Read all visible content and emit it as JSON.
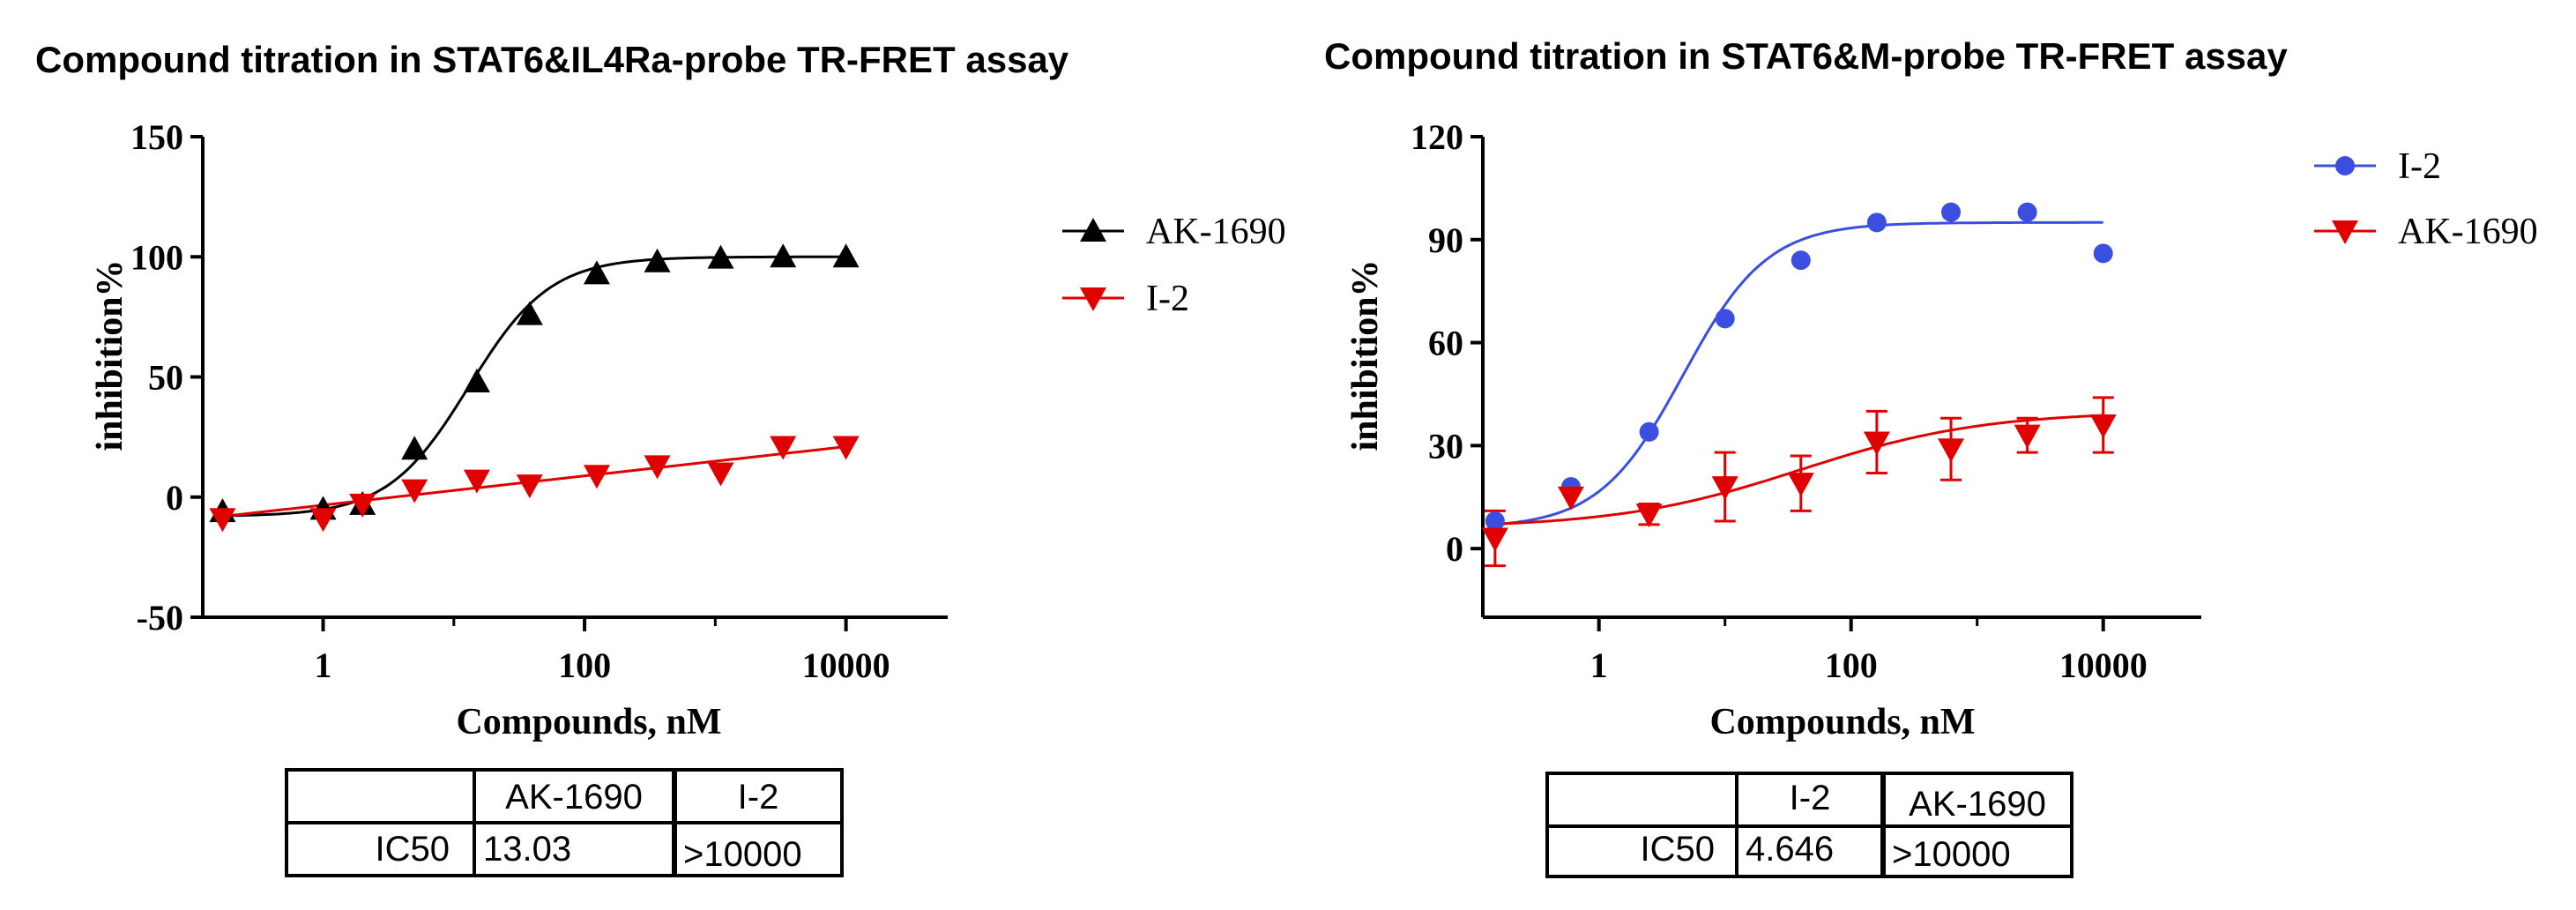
{
  "chart_data": [
    {
      "type": "scatter",
      "title": "Compound titration in STAT6&IL4Ra-probe TR-FRET assay",
      "xlabel": "Compounds, nM",
      "ylabel": "inhibition%",
      "xscale": "log10",
      "xlim": [
        0.12,
        60000
      ],
      "ylim": [
        -50,
        150
      ],
      "yticks": [
        "-50",
        "0",
        "50",
        "100",
        "150"
      ],
      "xticks": [
        "1",
        "100",
        "10000"
      ],
      "legend": "right",
      "series": [
        {
          "name": "AK-1690",
          "color": "#000000",
          "marker": "triangle-up",
          "x": [
            0.17,
            1,
            2,
            5,
            15,
            38,
            124,
            360,
            1100,
            3300,
            10000
          ],
          "y": [
            -6,
            -5,
            -3,
            20,
            48,
            76,
            93,
            98,
            99.5,
            100,
            100
          ],
          "fit": {
            "bottom": -8,
            "top": 100,
            "ic50": 13.03,
            "hill": 1.4
          }
        },
        {
          "name": "I-2",
          "color": "#e00000",
          "marker": "triangle-down",
          "x": [
            0.17,
            1,
            2,
            5,
            15,
            38,
            124,
            360,
            1100,
            3300,
            10000
          ],
          "y": [
            -9,
            -9,
            -3,
            3,
            7,
            5,
            9,
            13,
            10,
            21,
            21
          ],
          "fit": {
            "type": "linear-log",
            "y_at_0.17": -8,
            "y_at_10000": 21
          }
        }
      ],
      "table": {
        "columns": [
          "",
          "AK-1690",
          "I-2"
        ],
        "rows": [
          [
            "IC50",
            "13.03",
            ">10000"
          ]
        ]
      }
    },
    {
      "type": "scatter",
      "title": "Compound titration in STAT6&M-probe TR-FRET assay",
      "xlabel": "Compounds, nM",
      "ylabel": "inhibition%",
      "xscale": "log10",
      "xlim": [
        0.12,
        60000
      ],
      "ylim": [
        -20,
        120
      ],
      "yticks": [
        "0",
        "30",
        "60",
        "90",
        "120"
      ],
      "xticks": [
        "1",
        "100",
        "10000"
      ],
      "legend": "top-right",
      "series": [
        {
          "name": "I-2",
          "color": "#3a4fe0",
          "marker": "circle",
          "x": [
            0.15,
            0.6,
            2.5,
            10,
            40,
            160,
            620,
            2500,
            10000
          ],
          "y": [
            8,
            18,
            34,
            67,
            84,
            95,
            98,
            98,
            86
          ],
          "fit": {
            "bottom": 6,
            "top": 95,
            "ic50": 4.646,
            "hill": 1.3
          }
        },
        {
          "name": "AK-1690",
          "color": "#e00000",
          "marker": "triangle-down",
          "x": [
            0.15,
            0.6,
            2.5,
            10,
            40,
            160,
            620,
            2500,
            10000
          ],
          "y": [
            3,
            15,
            10,
            18,
            19,
            31,
            29,
            33,
            36
          ],
          "err": [
            8,
            0,
            3,
            10,
            8,
            9,
            9,
            5,
            8
          ],
          "fit": {
            "bottom": 6,
            "top": 40,
            "ic50": 40,
            "hill": 0.6
          }
        }
      ],
      "table": {
        "columns": [
          "",
          "I-2",
          "AK-1690"
        ],
        "rows": [
          [
            "IC50",
            "4.646",
            ">10000"
          ]
        ]
      }
    }
  ]
}
